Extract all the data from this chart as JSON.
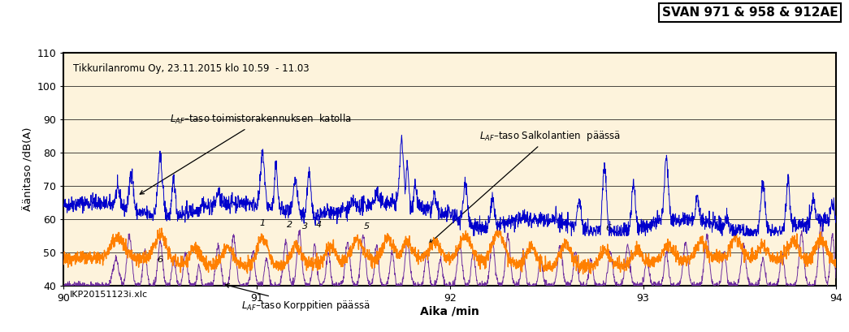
{
  "title_box": "SVAN 971 & 958 & 912AE",
  "subtitle": "Tikkurilanromu Oy, 23.11.2015 klo 10.59  - 11.03",
  "ylabel": "Äänitaso /dB(A)",
  "xlabel": "Aika /min",
  "xlim": [
    90,
    94
  ],
  "ylim": [
    40,
    110
  ],
  "yticks": [
    40,
    50,
    60,
    70,
    80,
    90,
    100,
    110
  ],
  "xticks": [
    90,
    91,
    92,
    93,
    94
  ],
  "bg_color": "#FDF3DC",
  "blue_color": "#0000CC",
  "orange_color": "#FF8000",
  "purple_color": "#7030A0",
  "file_label": "IKP20151123i.xlc",
  "seed": 42,
  "n_points": 3000
}
